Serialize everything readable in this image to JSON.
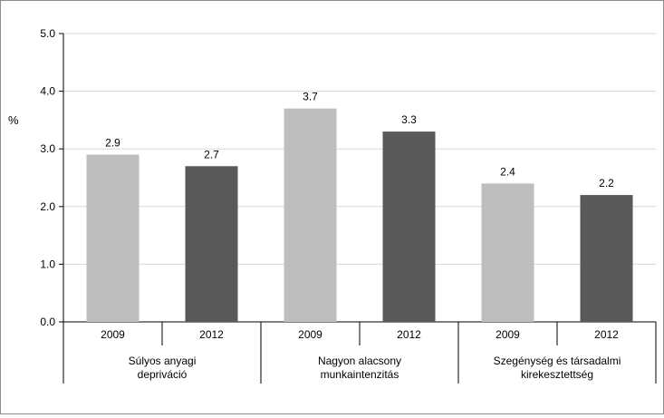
{
  "chart_data": {
    "type": "bar",
    "title": "",
    "ylabel": "%",
    "xlabel": "",
    "ylim": [
      0,
      5
    ],
    "yticks": [
      "0.0",
      "1.0",
      "2.0",
      "3.0",
      "4.0",
      "5.0"
    ],
    "grid": true,
    "legend": "none",
    "groups": [
      {
        "label_lines": [
          "Súlyos anyagi",
          "depriváció"
        ],
        "bars": [
          {
            "year": "2009",
            "value": 2.9,
            "label": "2.9"
          },
          {
            "year": "2012",
            "value": 2.7,
            "label": "2.7"
          }
        ]
      },
      {
        "label_lines": [
          "Nagyon alacsony",
          "munkaintenzitás"
        ],
        "bars": [
          {
            "year": "2009",
            "value": 3.7,
            "label": "3.7"
          },
          {
            "year": "2012",
            "value": 3.3,
            "label": "3.3"
          }
        ]
      },
      {
        "label_lines": [
          "Szegénység és társadalmi",
          "kirekesztettség"
        ],
        "bars": [
          {
            "year": "2009",
            "value": 2.4,
            "label": "2.4"
          },
          {
            "year": "2012",
            "value": 2.2,
            "label": "2.2"
          }
        ]
      }
    ],
    "colors": {
      "2009": "#bebebe",
      "2012": "#595959"
    }
  }
}
